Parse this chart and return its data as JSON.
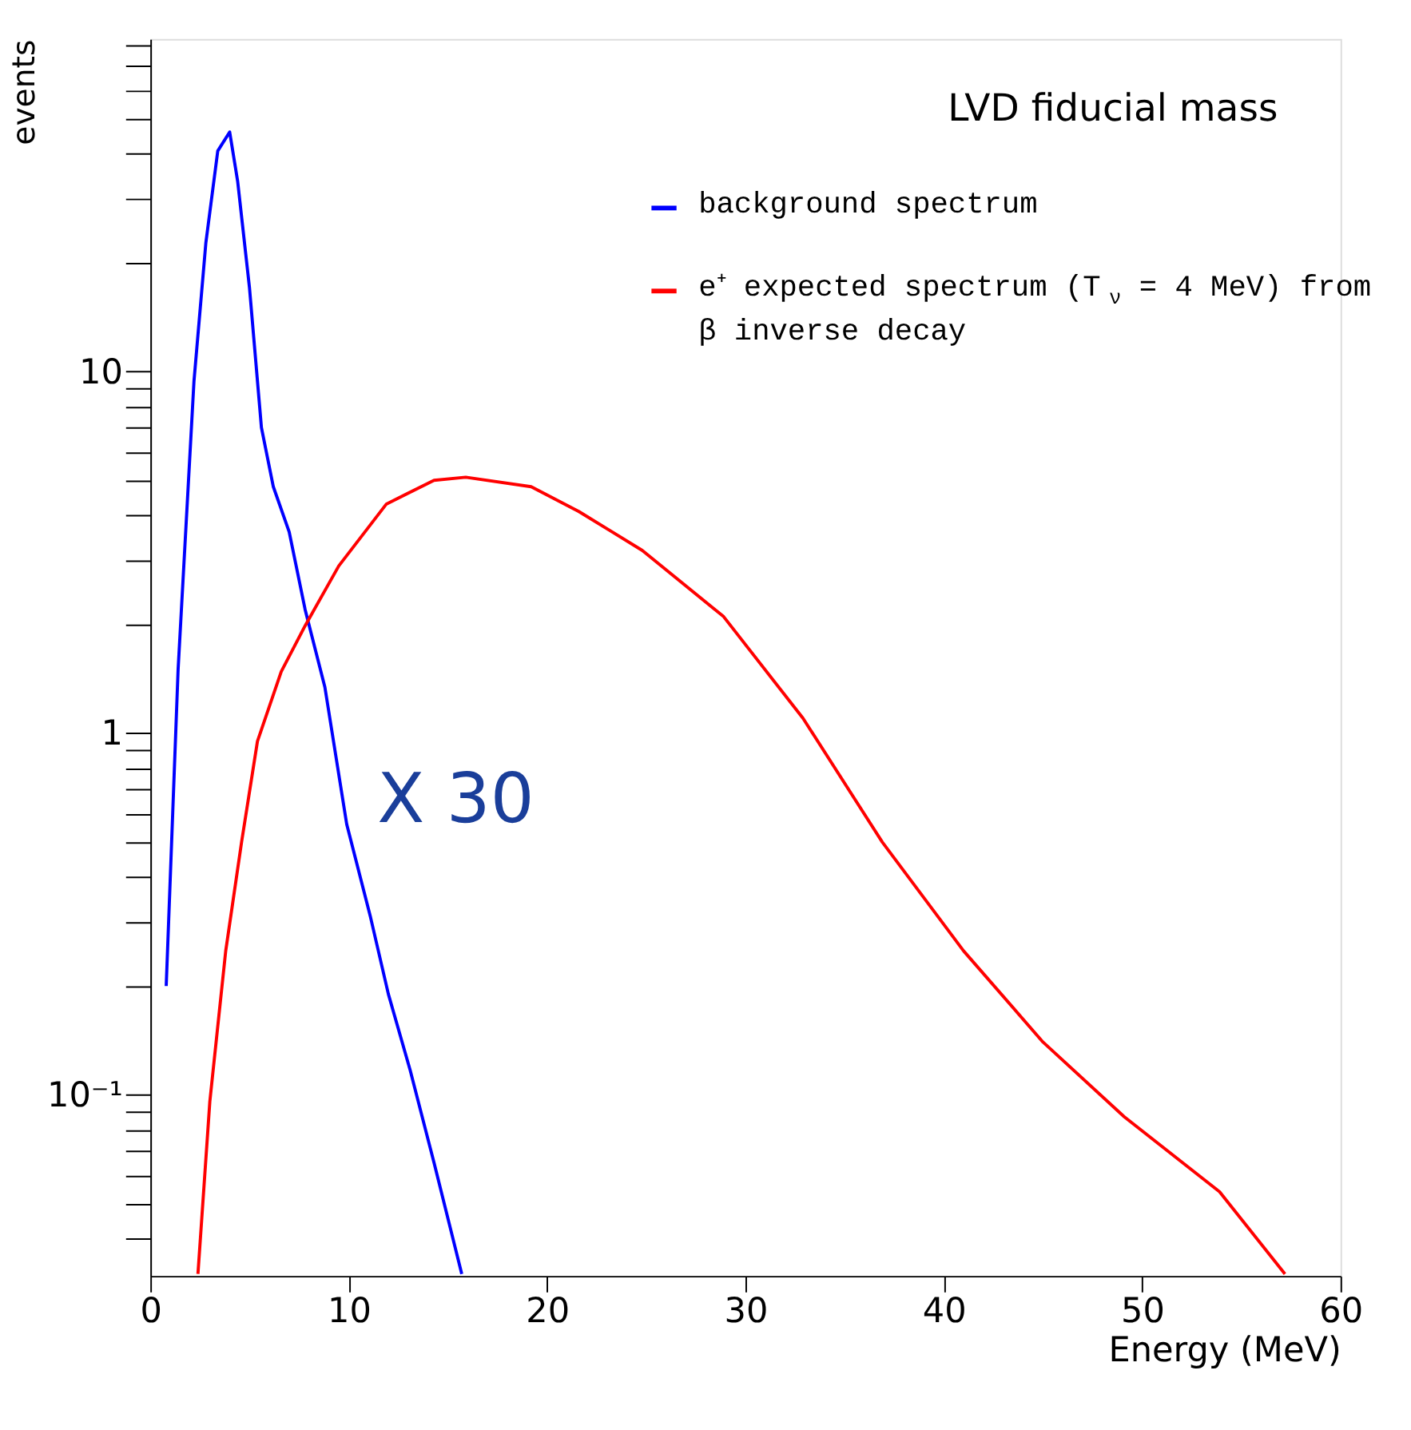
{
  "chart_data": {
    "type": "line",
    "xlabel": "Energy (MeV)",
    "ylabel": "events",
    "legend_title": "LVD fiducial mass",
    "legend": "top right",
    "log": "y",
    "grid": false,
    "marker": "none",
    "line_style": "solid",
    "xlim": [
      0,
      60
    ],
    "xticks": [
      0,
      10,
      20,
      30,
      40,
      50,
      60
    ],
    "ylim": [
      0.0316,
      83
    ],
    "yticks": [
      {
        "value": 0.04,
        "label": null
      },
      {
        "value": 0.05,
        "label": null
      },
      {
        "value": 0.06,
        "label": null
      },
      {
        "value": 0.07,
        "label": null
      },
      {
        "value": 0.08,
        "label": null
      },
      {
        "value": 0.09,
        "label": null
      },
      {
        "value": 0.1,
        "label": "10⁻¹"
      },
      {
        "value": 0.2,
        "label": null
      },
      {
        "value": 0.3,
        "label": null
      },
      {
        "value": 0.4,
        "label": null
      },
      {
        "value": 0.5,
        "label": null
      },
      {
        "value": 0.6,
        "label": null
      },
      {
        "value": 0.7,
        "label": null
      },
      {
        "value": 0.8,
        "label": null
      },
      {
        "value": 0.9,
        "label": null
      },
      1,
      {
        "value": 2,
        "label": null
      },
      {
        "value": 3,
        "label": null
      },
      {
        "value": 4,
        "label": null
      },
      {
        "value": 5,
        "label": null
      },
      {
        "value": 6,
        "label": null
      },
      {
        "value": 7,
        "label": null
      },
      {
        "value": 8,
        "label": null
      },
      {
        "value": 9,
        "label": null
      },
      10,
      {
        "value": 20,
        "label": null
      },
      {
        "value": 30,
        "label": null
      },
      {
        "value": 40,
        "label": null
      },
      {
        "value": 50,
        "label": null
      },
      {
        "value": 60,
        "label": null
      },
      {
        "value": 70,
        "label": null
      },
      {
        "value": 80,
        "label": null
      }
    ],
    "annotations": [
      "X 30"
    ],
    "series": [
      {
        "name": "background spectrum",
        "color": "#0000ff",
        "x": [
          0.8,
          1.4,
          2.2,
          2.8,
          3.4,
          4.0,
          4.4,
          5.0,
          5.6,
          6.2,
          7.0,
          7.8,
          8.8,
          9.9,
          11.1,
          12.0,
          13.1,
          14.3,
          15.7
        ],
        "values": [
          0.2,
          1.5,
          9.4,
          22.7,
          40.7,
          45.9,
          33.6,
          17,
          7.0,
          4.8,
          3.6,
          2.2,
          1.34,
          0.56,
          0.31,
          0.19,
          0.117,
          0.065,
          0.032
        ]
      },
      {
        "name": "e⁺ expected spectrum (T$_{ν}$ = 4 MeV) from β inverse decay",
        "color": "#ff0000",
        "x": [
          2.4,
          3.0,
          3.8,
          4.6,
          5.4,
          6.6,
          7.8,
          9.5,
          11.9,
          14.3,
          15.9,
          19.2,
          21.6,
          24.8,
          28.9,
          32.9,
          36.9,
          41.0,
          45.0,
          49.1,
          53.9,
          57.2
        ],
        "values": [
          0.032,
          0.096,
          0.25,
          0.5,
          0.95,
          1.48,
          1.98,
          2.9,
          4.3,
          5.0,
          5.1,
          4.8,
          4.1,
          3.2,
          2.1,
          1.1,
          0.5,
          0.25,
          0.14,
          0.087,
          0.054,
          0.032
        ]
      }
    ]
  }
}
